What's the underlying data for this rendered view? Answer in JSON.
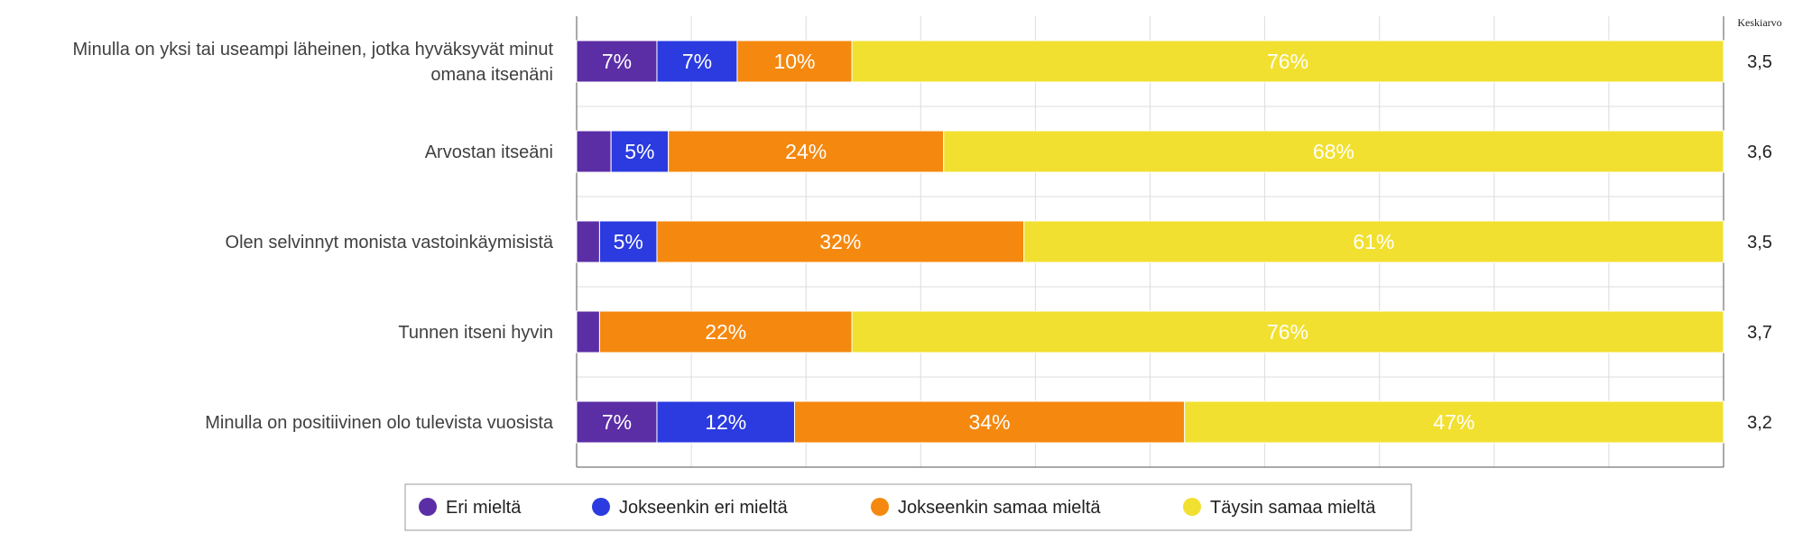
{
  "chart_data": {
    "type": "bar",
    "orientation": "horizontal",
    "stacked": true,
    "categories": [
      [
        "Minulla on yksi tai useampi läheinen, jotka hyväksyvät minut",
        "omana itsenäni"
      ],
      [
        "Arvostan itseäni"
      ],
      [
        "Olen selvinnyt monista vastoinkäymisistä"
      ],
      [
        "Tunnen itseni hyvin"
      ],
      [
        "Minulla on positiivinen olo tulevista vuosista"
      ]
    ],
    "series": [
      {
        "name": "Eri mieltä",
        "color": "#5b2ea6",
        "values": [
          7,
          3,
          2,
          2,
          7
        ]
      },
      {
        "name": "Jokseenkin eri mieltä",
        "color": "#2b3be0",
        "values": [
          7,
          5,
          5,
          0,
          12
        ]
      },
      {
        "name": "Jokseenkin samaa mieltä",
        "color": "#f5880f",
        "values": [
          10,
          24,
          32,
          22,
          34
        ]
      },
      {
        "name": "Täysin samaa mieltä",
        "color": "#f2e030",
        "values": [
          76,
          68,
          61,
          76,
          47
        ]
      }
    ],
    "data_labels": [
      [
        "7%",
        "7%",
        "10%",
        "76%"
      ],
      [
        "",
        "5%",
        "24%",
        "68%"
      ],
      [
        "",
        "5%",
        "32%",
        "61%"
      ],
      [
        "",
        "",
        "22%",
        "76%"
      ],
      [
        "7%",
        "12%",
        "34%",
        "47%"
      ]
    ],
    "mean_header": "Keskiarvo",
    "means": [
      "3,5",
      "3,6",
      "3,5",
      "3,7",
      "3,2"
    ],
    "xlim": [
      0,
      100
    ],
    "grid": true,
    "legend_position": "bottom"
  }
}
